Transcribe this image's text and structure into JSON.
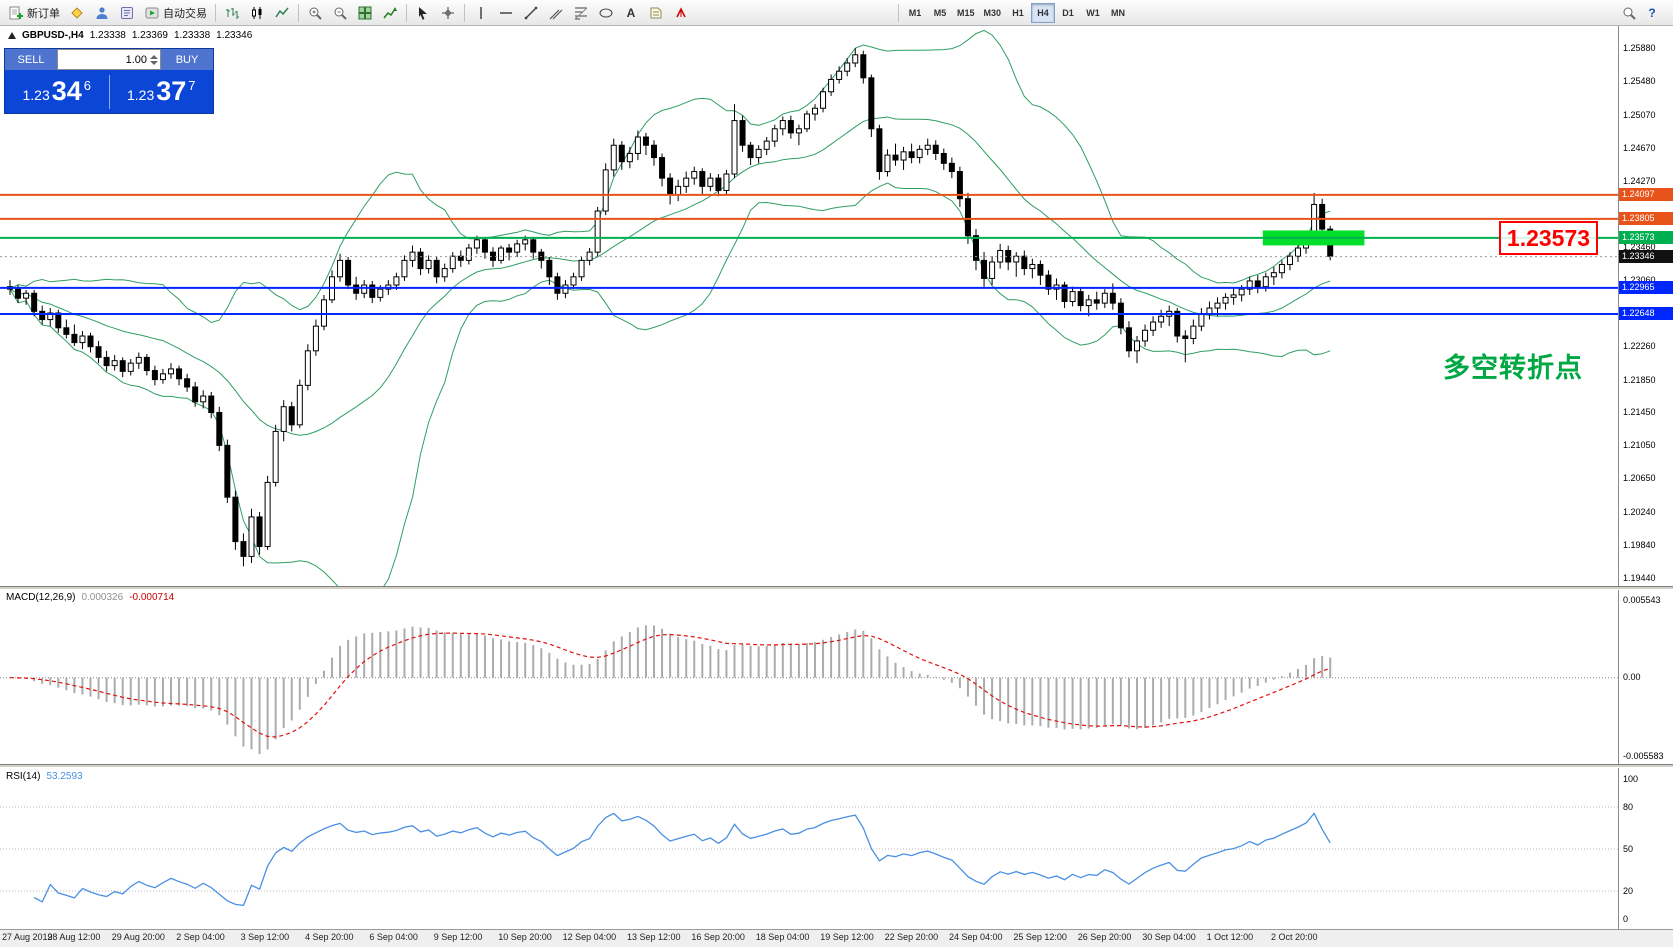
{
  "toolbar": {
    "new_order_label": "新订单",
    "autotrading_label": "自动交易",
    "text_tool_label": "A",
    "help_glyph": "?",
    "timeframes": [
      "M1",
      "M5",
      "M15",
      "M30",
      "H1",
      "H4",
      "D1",
      "W1",
      "MN"
    ],
    "active_timeframe": "H4"
  },
  "symbol_info": {
    "title": "GBPUSD-,H4",
    "open": "1.23338",
    "high": "1.23369",
    "low": "1.23338",
    "close": "1.23346"
  },
  "trade_panel": {
    "sell_label": "SELL",
    "buy_label": "BUY",
    "volume": "1.00",
    "sell_price_big": "1.23",
    "sell_price_main": "34",
    "sell_price_sup": "6",
    "buy_price_big": "1.23",
    "buy_price_main": "37",
    "buy_price_sup": "7"
  },
  "annotations": {
    "turning_point_text": "多空转折点",
    "price_callout": "1.23573",
    "colors": {
      "turning_point": "#00a843",
      "callout": "#ff0000",
      "highlight": "#00e02a"
    }
  },
  "price_axis": {
    "ticks": [
      "1.25880",
      "1.25480",
      "1.25070",
      "1.24670",
      "1.24270",
      "1.23460",
      "1.23060",
      "1.22260",
      "1.21850",
      "1.21450",
      "1.21050",
      "1.20650",
      "1.20240",
      "1.19840",
      "1.19440"
    ],
    "current_price": "1.23346"
  },
  "chart_data": [
    {
      "type": "candlestick",
      "title": "GBPUSD- H4",
      "price_min": 1.1934,
      "price_max": 1.2615,
      "bollinger": {
        "period": 20,
        "deviation": 2,
        "color": "#2f9e63"
      },
      "levels": [
        {
          "price": 1.24097,
          "label": "1.24097",
          "color": "#e8531a"
        },
        {
          "price": 1.23805,
          "label": "1.23805",
          "color": "#e8531a"
        },
        {
          "price": 1.23573,
          "label": "1.23573",
          "color": "#00b050"
        },
        {
          "price": 1.22965,
          "label": "1.22965",
          "color": "#0026ff"
        },
        {
          "price": 1.22648,
          "label": "1.22648",
          "color": "#0026ff"
        }
      ],
      "current_price": 1.23346,
      "highlight_zone": {
        "from_candle": 156,
        "to_candle": 168,
        "price": 1.23573
      },
      "candles_ohlc_pips": [
        [
          12298,
          12306,
          12288,
          12295
        ],
        [
          12295,
          12300,
          12278,
          12284
        ],
        [
          12284,
          12294,
          12276,
          12290
        ],
        [
          12290,
          12294,
          12262,
          12268
        ],
        [
          12268,
          12275,
          12252,
          12258
        ],
        [
          12258,
          12272,
          12250,
          12266
        ],
        [
          12266,
          12270,
          12242,
          12248
        ],
        [
          12248,
          12258,
          12235,
          12240
        ],
        [
          12240,
          12252,
          12226,
          12230
        ],
        [
          12230,
          12244,
          12222,
          12238
        ],
        [
          12238,
          12242,
          12218,
          12225
        ],
        [
          12225,
          12232,
          12205,
          12212
        ],
        [
          12212,
          12220,
          12195,
          12202
        ],
        [
          12202,
          12215,
          12196,
          12208
        ],
        [
          12208,
          12212,
          12188,
          12195
        ],
        [
          12195,
          12210,
          12190,
          12205
        ],
        [
          12205,
          12218,
          12198,
          12212
        ],
        [
          12212,
          12216,
          12190,
          12196
        ],
        [
          12196,
          12202,
          12178,
          12185
        ],
        [
          12185,
          12198,
          12180,
          12192
        ],
        [
          12192,
          12205,
          12186,
          12198
        ],
        [
          12198,
          12202,
          12178,
          12186
        ],
        [
          12186,
          12192,
          12170,
          12176
        ],
        [
          12176,
          12182,
          12152,
          12158
        ],
        [
          12158,
          12172,
          12150,
          12165
        ],
        [
          12165,
          12170,
          12138,
          12145
        ],
        [
          12145,
          12152,
          12098,
          12105
        ],
        [
          12105,
          12112,
          12035,
          12042
        ],
        [
          12042,
          12050,
          11978,
          11988
        ],
        [
          11988,
          11998,
          11958,
          11970
        ],
        [
          11970,
          12028,
          11962,
          12018
        ],
        [
          12018,
          12024,
          11972,
          11982
        ],
        [
          11982,
          12068,
          11978,
          12060
        ],
        [
          12060,
          12130,
          12055,
          12122
        ],
        [
          12122,
          12160,
          12110,
          12152
        ],
        [
          12152,
          12158,
          12122,
          12130
        ],
        [
          12130,
          12185,
          12126,
          12178
        ],
        [
          12178,
          12228,
          12172,
          12220
        ],
        [
          12220,
          12258,
          12214,
          12250
        ],
        [
          12250,
          12288,
          12245,
          12282
        ],
        [
          12282,
          12318,
          12278,
          12310
        ],
        [
          12310,
          12338,
          12304,
          12330
        ],
        [
          12330,
          12334,
          12295,
          12300
        ],
        [
          12300,
          12310,
          12282,
          12290
        ],
        [
          12290,
          12306,
          12284,
          12300
        ],
        [
          12300,
          12305,
          12278,
          12285
        ],
        [
          12285,
          12300,
          12280,
          12295
        ],
        [
          12295,
          12306,
          12288,
          12300
        ],
        [
          12300,
          12315,
          12294,
          12310
        ],
        [
          12310,
          12336,
          12305,
          12330
        ],
        [
          12330,
          12348,
          12322,
          12340
        ],
        [
          12340,
          12345,
          12312,
          12320
        ],
        [
          12320,
          12336,
          12314,
          12330
        ],
        [
          12330,
          12335,
          12302,
          12310
        ],
        [
          12310,
          12326,
          12304,
          12320
        ],
        [
          12320,
          12340,
          12315,
          12335
        ],
        [
          12335,
          12342,
          12322,
          12330
        ],
        [
          12330,
          12350,
          12325,
          12345
        ],
        [
          12345,
          12360,
          12338,
          12355
        ],
        [
          12355,
          12358,
          12332,
          12340
        ],
        [
          12340,
          12346,
          12322,
          12330
        ],
        [
          12330,
          12348,
          12326,
          12345
        ],
        [
          12345,
          12350,
          12330,
          12340
        ],
        [
          12340,
          12355,
          12334,
          12350
        ],
        [
          12350,
          12360,
          12342,
          12355
        ],
        [
          12355,
          12358,
          12332,
          12340
        ],
        [
          12340,
          12344,
          12320,
          12330
        ],
        [
          12330,
          12334,
          12300,
          12310
        ],
        [
          12310,
          12315,
          12282,
          12290
        ],
        [
          12290,
          12306,
          12284,
          12300
        ],
        [
          12300,
          12315,
          12295,
          12310
        ],
        [
          12310,
          12335,
          12305,
          12330
        ],
        [
          12330,
          12345,
          12324,
          12340
        ],
        [
          12340,
          12395,
          12335,
          12390
        ],
        [
          12390,
          12448,
          12385,
          12440
        ],
        [
          12440,
          12478,
          12432,
          12470
        ],
        [
          12470,
          12475,
          12440,
          12450
        ],
        [
          12450,
          12468,
          12442,
          12460
        ],
        [
          12460,
          12488,
          12452,
          12480
        ],
        [
          12480,
          12485,
          12458,
          12470
        ],
        [
          12470,
          12476,
          12445,
          12455
        ],
        [
          12455,
          12460,
          12420,
          12430
        ],
        [
          12430,
          12436,
          12398,
          12410
        ],
        [
          12410,
          12428,
          12402,
          12420
        ],
        [
          12420,
          12438,
          12412,
          12430
        ],
        [
          12430,
          12444,
          12422,
          12438
        ],
        [
          12438,
          12442,
          12410,
          12420
        ],
        [
          12420,
          12436,
          12414,
          12430
        ],
        [
          12430,
          12435,
          12408,
          12415
        ],
        [
          12415,
          12440,
          12410,
          12435
        ],
        [
          12435,
          12520,
          12430,
          12500
        ],
        [
          12500,
          12506,
          12462,
          12470
        ],
        [
          12470,
          12474,
          12446,
          12455
        ],
        [
          12455,
          12470,
          12448,
          12465
        ],
        [
          12465,
          12480,
          12458,
          12475
        ],
        [
          12475,
          12495,
          12468,
          12490
        ],
        [
          12490,
          12505,
          12482,
          12500
        ],
        [
          12500,
          12506,
          12478,
          12485
        ],
        [
          12485,
          12495,
          12470,
          12490
        ],
        [
          12490,
          12512,
          12486,
          12508
        ],
        [
          12508,
          12520,
          12500,
          12515
        ],
        [
          12515,
          12540,
          12510,
          12535
        ],
        [
          12535,
          12556,
          12530,
          12550
        ],
        [
          12550,
          12566,
          12545,
          12560
        ],
        [
          12560,
          12576,
          12554,
          12570
        ],
        [
          12570,
          12588,
          12565,
          12580
        ],
        [
          12580,
          12585,
          12545,
          12552
        ],
        [
          12552,
          12556,
          12480,
          12490
        ],
        [
          12490,
          12495,
          12428,
          12438
        ],
        [
          12438,
          12465,
          12432,
          12458
        ],
        [
          12458,
          12472,
          12445,
          12452
        ],
        [
          12452,
          12468,
          12440,
          12462
        ],
        [
          12462,
          12472,
          12448,
          12455
        ],
        [
          12455,
          12470,
          12448,
          12465
        ],
        [
          12465,
          12478,
          12458,
          12470
        ],
        [
          12470,
          12476,
          12452,
          12460
        ],
        [
          12460,
          12466,
          12440,
          12448
        ],
        [
          12448,
          12455,
          12430,
          12438
        ],
        [
          12438,
          12444,
          12395,
          12405
        ],
        [
          12405,
          12412,
          12350,
          12360
        ],
        [
          12360,
          12368,
          12318,
          12330
        ],
        [
          12330,
          12340,
          12298,
          12308
        ],
        [
          12308,
          12335,
          12300,
          12328
        ],
        [
          12328,
          12350,
          12320,
          12342
        ],
        [
          12342,
          12348,
          12318,
          12328
        ],
        [
          12328,
          12340,
          12310,
          12335
        ],
        [
          12335,
          12342,
          12312,
          12320
        ],
        [
          12320,
          12332,
          12308,
          12325
        ],
        [
          12325,
          12330,
          12300,
          12312
        ],
        [
          12312,
          12318,
          12288,
          12295
        ],
        [
          12295,
          12308,
          12282,
          12300
        ],
        [
          12300,
          12304,
          12272,
          12280
        ],
        [
          12280,
          12298,
          12274,
          12292
        ],
        [
          12292,
          12296,
          12268,
          12275
        ],
        [
          12275,
          12288,
          12262,
          12282
        ],
        [
          12282,
          12292,
          12270,
          12278
        ],
        [
          12278,
          12295,
          12272,
          12290
        ],
        [
          12290,
          12302,
          12270,
          12278
        ],
        [
          12278,
          12284,
          12240,
          12248
        ],
        [
          12248,
          12256,
          12212,
          12220
        ],
        [
          12220,
          12238,
          12205,
          12232
        ],
        [
          12232,
          12252,
          12225,
          12245
        ],
        [
          12245,
          12262,
          12238,
          12255
        ],
        [
          12255,
          12270,
          12248,
          12262
        ],
        [
          12262,
          12275,
          12250,
          12268
        ],
        [
          12268,
          12272,
          12230,
          12238
        ],
        [
          12238,
          12245,
          12206,
          12235
        ],
        [
          12235,
          12258,
          12228,
          12250
        ],
        [
          12250,
          12272,
          12244,
          12265
        ],
        [
          12265,
          12280,
          12258,
          12272
        ],
        [
          12272,
          12285,
          12262,
          12278
        ],
        [
          12278,
          12290,
          12270,
          12285
        ],
        [
          12285,
          12296,
          12276,
          12288
        ],
        [
          12288,
          12300,
          12280,
          12295
        ],
        [
          12295,
          12310,
          12288,
          12305
        ],
        [
          12305,
          12312,
          12290,
          12298
        ],
        [
          12298,
          12315,
          12292,
          12310
        ],
        [
          12310,
          12322,
          12300,
          12315
        ],
        [
          12315,
          12330,
          12308,
          12325
        ],
        [
          12325,
          12340,
          12318,
          12335
        ],
        [
          12335,
          12352,
          12328,
          12345
        ],
        [
          12345,
          12365,
          12338,
          12358
        ],
        [
          12358,
          12412,
          12352,
          12398
        ],
        [
          12398,
          12405,
          12360,
          12368
        ],
        [
          12368,
          12372,
          12330,
          12335
        ]
      ]
    },
    {
      "type": "bar",
      "name": "MACD",
      "label": "MACD(12,26,9)",
      "values_label": [
        "0.000326",
        "-0.000714"
      ],
      "axis_ticks": [
        "0.005543",
        "0.00",
        "-0.005583"
      ],
      "params": {
        "fast": 12,
        "slow": 26,
        "signal": 9
      },
      "histogram_color": "#ababab",
      "signal_color": "#e01010"
    },
    {
      "type": "line",
      "name": "RSI",
      "label": "RSI(14)",
      "value_label": "53.2593",
      "axis_ticks": [
        "100",
        "80",
        "50",
        "20",
        "0"
      ],
      "levels": [
        80,
        50,
        20
      ],
      "line_color": "#4a90e2",
      "period": 14
    }
  ],
  "time_axis": [
    "27 Aug 2019",
    "28 Aug 12:00",
    "29 Aug 20:00",
    "2 Sep 04:00",
    "3 Sep 12:00",
    "4 Sep 20:00",
    "6 Sep 04:00",
    "9 Sep 12:00",
    "10 Sep 20:00",
    "12 Sep 04:00",
    "13 Sep 12:00",
    "16 Sep 20:00",
    "18 Sep 04:00",
    "19 Sep 12:00",
    "22 Sep 20:00",
    "24 Sep 04:00",
    "25 Sep 12:00",
    "26 Sep 20:00",
    "30 Sep 04:00",
    "1 Oct 12:00",
    "2 Oct 20:00"
  ]
}
